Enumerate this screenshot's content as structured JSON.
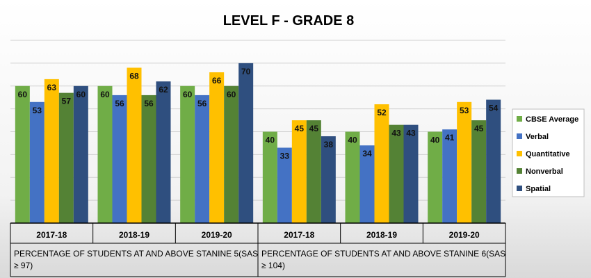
{
  "chart_data": {
    "type": "bar",
    "title": "LEVEL F - GRADE 8",
    "ylim": [
      0,
      80
    ],
    "grid": true,
    "legend_position": "right",
    "groups": [
      {
        "label_lines": [
          "PERCENTAGE OF STUDENTS AT AND ABOVE STANINE 5(SAS",
          "≥ 97)"
        ],
        "categories": [
          "2017-18",
          "2018-19",
          "2019-20"
        ]
      },
      {
        "label_lines": [
          "PERCENTAGE OF STUDENTS AT AND ABOVE STANINE 6(SAS",
          "≥ 104)"
        ],
        "categories": [
          "2017-18",
          "2018-19",
          "2019-20"
        ]
      }
    ],
    "series": [
      {
        "name": "CBSE Average",
        "color": "#70AD47",
        "values": [
          60,
          60,
          60,
          40,
          40,
          40
        ]
      },
      {
        "name": "Verbal",
        "color": "#4472C4",
        "values": [
          53,
          56,
          56,
          33,
          34,
          41
        ]
      },
      {
        "name": "Quantitative",
        "color": "#FFC000",
        "values": [
          63,
          68,
          66,
          45,
          52,
          53
        ]
      },
      {
        "name": "Nonverbal",
        "color": "#548235",
        "values": [
          57,
          56,
          60,
          45,
          43,
          45
        ]
      },
      {
        "name": "Spatial",
        "color": "#2F4F7F",
        "values": [
          60,
          62,
          70,
          38,
          43,
          54
        ]
      }
    ]
  }
}
